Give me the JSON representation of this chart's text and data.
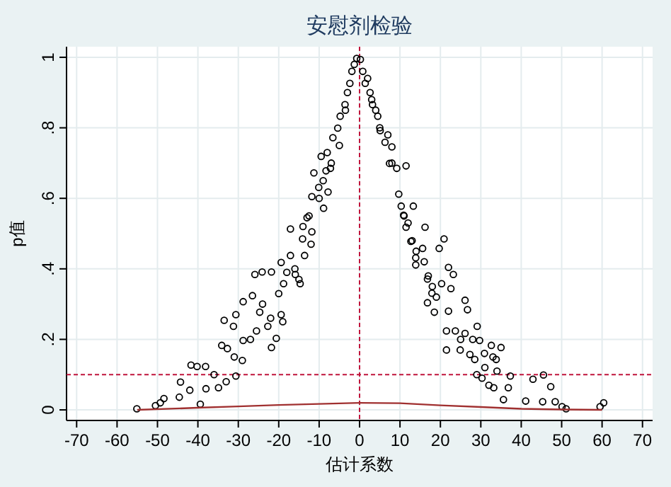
{
  "chart_data": {
    "type": "scatter",
    "title": "安慰剂检验",
    "xlabel": "估计系数",
    "ylabel": "p值",
    "xlim": [
      -72.5,
      72.5
    ],
    "ylim": [
      -0.03,
      1.03
    ],
    "xticks": [
      -70,
      -60,
      -50,
      -40,
      -30,
      -20,
      -10,
      0,
      10,
      20,
      30,
      40,
      50,
      60,
      70
    ],
    "yticks": [
      0,
      {
        "value": 0.2,
        "label": ".2"
      },
      {
        "value": 0.4,
        "label": ".4"
      },
      {
        "value": 0.6,
        "label": ".6"
      },
      {
        "value": 0.8,
        "label": ".8"
      },
      1
    ],
    "grid": true,
    "marker": "circle",
    "ref_lines": [
      {
        "axis": "x",
        "value": 0,
        "color": "#c0143c",
        "line_style": "dashed"
      },
      {
        "axis": "y",
        "value": 0.1,
        "color": "#c0143c",
        "line_style": "dashed"
      }
    ],
    "series": [
      {
        "type": "scatter",
        "color": "#000000",
        "x": [
          -55.1,
          -50.5,
          -49.3,
          -48.4,
          -44.3,
          -44.6,
          -41.7,
          -40.2,
          -39.4,
          -42,
          -38.1,
          -34.9,
          -34.1,
          -33.5,
          -32.7,
          -31.2,
          -30.6,
          -30.6,
          -28.8,
          -28.8,
          -26.5,
          -25.9,
          -24.1,
          -25.5,
          -24.7,
          -22.7,
          -21.8,
          -21.8,
          -20.6,
          -19.4,
          -19.4,
          -18.8,
          -17.1,
          -17.1,
          -15.9,
          -14.7,
          -14.1,
          -13.6,
          -13,
          -11.8,
          -11.8,
          -11.3,
          -10.1,
          -9.5,
          -8.9,
          -8.3,
          -7.8,
          -7.2,
          -6.6,
          -5.4,
          -4.8,
          -3.6,
          -3,
          -2.4,
          -1.9,
          -1.3,
          -0.7,
          -22,
          -27,
          -24,
          -19,
          -16,
          -15,
          -12,
          -14,
          -10,
          -9,
          -7,
          -5,
          -3.5,
          -29,
          -31,
          -36,
          -33,
          -38,
          -20,
          -18,
          -12.5,
          -8,
          0.2,
          0.8,
          1.4,
          2.6,
          3.2,
          4.5,
          5.1,
          6.3,
          8,
          7.4,
          9.2,
          11.5,
          9.7,
          10.3,
          10.9,
          11.5,
          13.3,
          12.7,
          13.9,
          13.9,
          16.2,
          15.6,
          16.8,
          16.8,
          17.9,
          18.5,
          19.7,
          20.9,
          20.3,
          22,
          21.5,
          21.5,
          22.6,
          23.2,
          23.7,
          24.9,
          26.1,
          26.1,
          26.7,
          27.3,
          28.5,
          29.1,
          29.7,
          30.3,
          30.9,
          32.6,
          33.2,
          33.8,
          35,
          35.6,
          36.8,
          37.3,
          41.1,
          42.9,
          45.3,
          45.5,
          47.3,
          48.4,
          50.1,
          51.1,
          59.5,
          60.4,
          3,
          5,
          7,
          2,
          4,
          12,
          14,
          16,
          18,
          19,
          22,
          25,
          28,
          31,
          33,
          34,
          29,
          32,
          11,
          8,
          13,
          17
        ],
        "values": [
          0.003,
          0.012,
          0.02,
          0.032,
          0.079,
          0.036,
          0.127,
          0.123,
          0.016,
          0.056,
          0.123,
          0.063,
          0.183,
          0.254,
          0.174,
          0.237,
          0.096,
          0.27,
          0.307,
          0.197,
          0.324,
          0.384,
          0.391,
          0.224,
          0.277,
          0.237,
          0.391,
          0.177,
          0.203,
          0.27,
          0.418,
          0.358,
          0.438,
          0.513,
          0.384,
          0.358,
          0.485,
          0.438,
          0.545,
          0.605,
          0.505,
          0.672,
          0.631,
          0.719,
          0.572,
          0.678,
          0.618,
          0.685,
          0.772,
          0.799,
          0.833,
          0.866,
          0.9,
          0.926,
          0.96,
          0.98,
          0.997,
          0.26,
          0.2,
          0.3,
          0.25,
          0.4,
          0.37,
          0.47,
          0.52,
          0.6,
          0.65,
          0.7,
          0.75,
          0.85,
          0.14,
          0.15,
          0.1,
          0.08,
          0.06,
          0.33,
          0.39,
          0.55,
          0.73,
          0.994,
          0.96,
          0.926,
          0.9,
          0.866,
          0.833,
          0.792,
          0.759,
          0.746,
          0.699,
          0.685,
          0.692,
          0.612,
          0.578,
          0.552,
          0.518,
          0.578,
          0.478,
          0.411,
          0.431,
          0.518,
          0.458,
          0.371,
          0.304,
          0.331,
          0.277,
          0.458,
          0.485,
          0.358,
          0.404,
          0.224,
          0.17,
          0.344,
          0.384,
          0.224,
          0.17,
          0.217,
          0.311,
          0.284,
          0.157,
          0.143,
          0.237,
          0.197,
          0.09,
          0.16,
          0.183,
          0.063,
          0.143,
          0.177,
          0.029,
          0.063,
          0.096,
          0.025,
          0.087,
          0.023,
          0.099,
          0.066,
          0.023,
          0.009,
          0.003,
          0.009,
          0.02,
          0.88,
          0.8,
          0.78,
          0.94,
          0.85,
          0.53,
          0.45,
          0.42,
          0.35,
          0.32,
          0.28,
          0.2,
          0.2,
          0.12,
          0.15,
          0.11,
          0.1,
          0.07,
          0.55,
          0.7,
          0.48,
          0.38
        ]
      },
      {
        "type": "line",
        "color": "#a03030",
        "marker": "none",
        "x": [
          -55,
          -40,
          -30,
          -20,
          -10,
          0,
          10,
          20,
          30,
          40,
          50,
          60
        ],
        "values": [
          0.0,
          0.006,
          0.01,
          0.014,
          0.017,
          0.02,
          0.019,
          0.013,
          0.008,
          0.003,
          0.001,
          0.0
        ]
      }
    ]
  }
}
